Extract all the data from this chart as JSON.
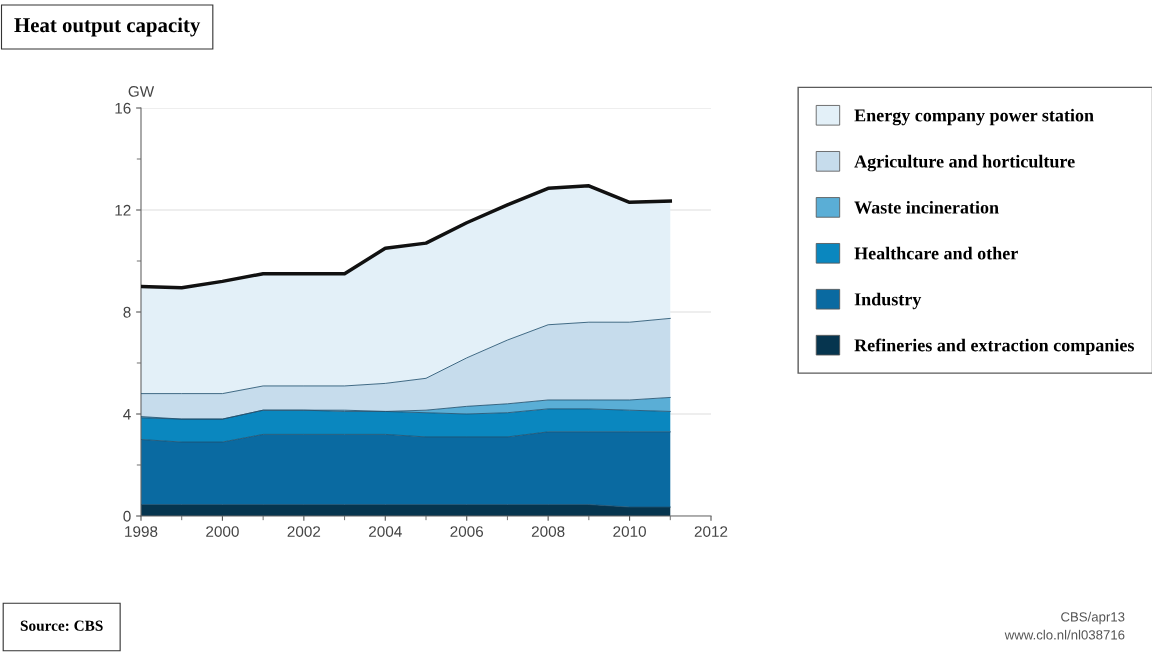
{
  "chart_data": {
    "type": "area",
    "title": "Heat output capacity",
    "ylabel": "GW",
    "stacked": true,
    "x": [
      1998,
      1999,
      2000,
      2001,
      2002,
      2003,
      2004,
      2005,
      2006,
      2007,
      2008,
      2009,
      2010,
      2011
    ],
    "series": [
      {
        "name": "Refineries and extraction companies",
        "color": "#06354f",
        "values": [
          0.45,
          0.45,
          0.45,
          0.45,
          0.45,
          0.45,
          0.45,
          0.45,
          0.45,
          0.45,
          0.45,
          0.45,
          0.35,
          0.35
        ]
      },
      {
        "name": "Industry",
        "color": "#0a6aa1",
        "values": [
          2.55,
          2.45,
          2.45,
          2.75,
          2.75,
          2.75,
          2.75,
          2.65,
          2.65,
          2.65,
          2.85,
          2.85,
          2.95,
          2.95
        ]
      },
      {
        "name": "Healthcare and other",
        "color": "#0a87bf",
        "values": [
          0.85,
          0.9,
          0.9,
          0.95,
          0.95,
          0.9,
          0.9,
          0.95,
          0.9,
          0.95,
          0.9,
          0.9,
          0.85,
          0.8
        ]
      },
      {
        "name": "Waste incineration",
        "color": "#5aaed6",
        "values": [
          0.05,
          0,
          0,
          0,
          0,
          0.05,
          0,
          0.1,
          0.3,
          0.35,
          0.35,
          0.35,
          0.4,
          0.55
        ]
      },
      {
        "name": "Agriculture and horticulture",
        "color": "#c6dcec",
        "values": [
          0.9,
          1.0,
          1.0,
          0.95,
          0.95,
          0.95,
          1.1,
          1.25,
          1.9,
          2.5,
          2.95,
          3.05,
          3.05,
          3.1
        ]
      },
      {
        "name": "Energy company power station",
        "color": "#e3f0f8",
        "values": [
          4.2,
          4.15,
          4.4,
          4.4,
          4.4,
          4.4,
          5.3,
          5.3,
          5.3,
          5.3,
          5.35,
          5.35,
          4.7,
          4.6
        ]
      }
    ],
    "xlim": [
      1998,
      2012
    ],
    "xticks": [
      1998,
      2000,
      2002,
      2004,
      2006,
      2008,
      2010,
      2012
    ],
    "ylim": [
      0,
      16
    ],
    "yticks": [
      0,
      4,
      8,
      12,
      16
    ],
    "grid": "y",
    "legend": "right",
    "annotations": [
      "Source: CBS",
      "CBS/apr13",
      "www.clo.nl/nl038716"
    ]
  }
}
